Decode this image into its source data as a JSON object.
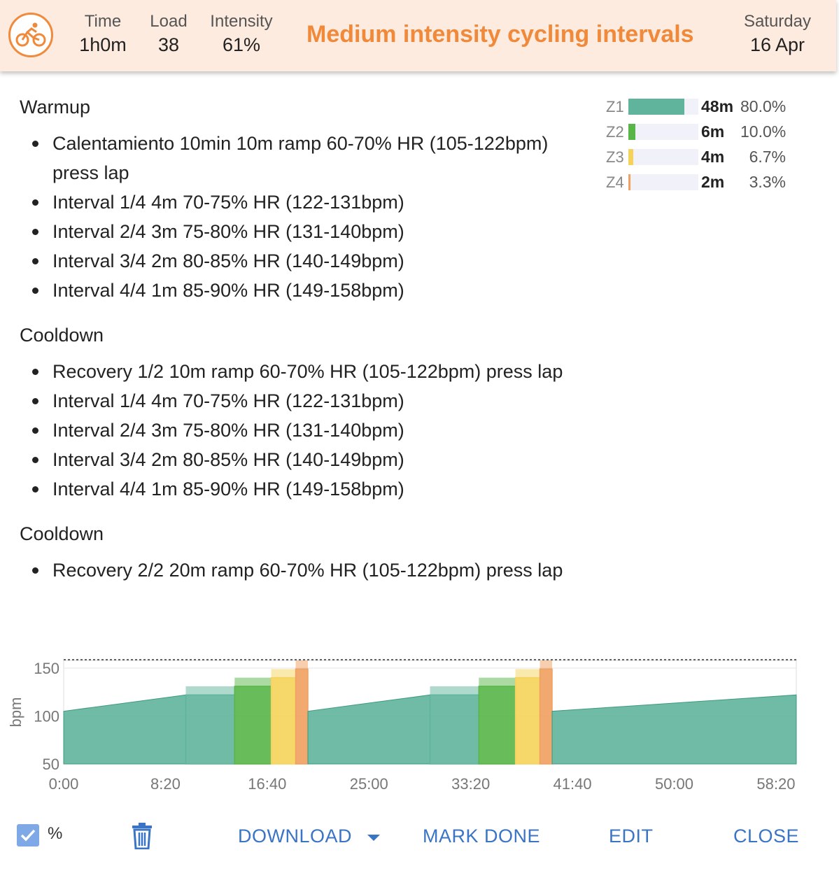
{
  "header": {
    "icon": "bike-icon",
    "accent": "#f0893a",
    "stats": [
      {
        "label": "Time",
        "value": "1h0m"
      },
      {
        "label": "Load",
        "value": "38"
      },
      {
        "label": "Intensity",
        "value": "61%"
      }
    ],
    "title": "Medium intensity cycling intervals",
    "day": "Saturday",
    "date": "16 Apr"
  },
  "sections": [
    {
      "title": "Warmup",
      "items": [
        "Calentamiento 10min 10m ramp 60-70% HR (105-122bpm) press lap",
        "Interval 1/4 4m 70-75% HR (122-131bpm)",
        "Interval 2/4 3m 75-80% HR (131-140bpm)",
        "Interval 3/4 2m 80-85% HR (140-149bpm)",
        "Interval 4/4 1m 85-90% HR (149-158bpm)"
      ]
    },
    {
      "title": "Cooldown",
      "items": [
        "Recovery 1/2 10m ramp 60-70% HR (105-122bpm) press lap",
        "Interval 1/4 4m 70-75% HR (122-131bpm)",
        "Interval 2/4 3m 75-80% HR (131-140bpm)",
        "Interval 3/4 2m 80-85% HR (140-149bpm)",
        "Interval 4/4 1m 85-90% HR (149-158bpm)"
      ]
    },
    {
      "title": "Cooldown",
      "items": [
        "Recovery 2/2 20m ramp 60-70% HR (105-122bpm) press lap"
      ]
    }
  ],
  "zones": [
    {
      "label": "Z1",
      "time": "48m",
      "pct": "80.0%",
      "fraction": 0.8,
      "color": "#5fb49b"
    },
    {
      "label": "Z2",
      "time": "6m",
      "pct": "10.0%",
      "fraction": 0.1,
      "color": "#58b547"
    },
    {
      "label": "Z3",
      "time": "4m",
      "pct": "6.7%",
      "fraction": 0.067,
      "color": "#f5d35a"
    },
    {
      "label": "Z4",
      "time": "2m",
      "pct": "3.3%",
      "fraction": 0.033,
      "color": "#f0a060"
    }
  ],
  "chart_data": {
    "type": "area",
    "ylabel": "bpm",
    "xlabel": "",
    "y_ticks": [
      "150",
      "100",
      "50"
    ],
    "x_ticks": [
      "0:00",
      "8:20",
      "16:40",
      "25:00",
      "33:20",
      "41:40",
      "50:00",
      "58:20"
    ],
    "ylim": [
      50,
      158
    ],
    "xlim_minutes": [
      0,
      60
    ],
    "max_hr_line_bpm": 158,
    "segments": [
      {
        "start_min": 0,
        "end_min": 10,
        "kind": "ramp",
        "low_bpm": 105,
        "high_bpm": 122,
        "zone": "Z1"
      },
      {
        "start_min": 10,
        "end_min": 14,
        "kind": "range",
        "low_bpm": 122,
        "high_bpm": 131,
        "zone": "Z1"
      },
      {
        "start_min": 14,
        "end_min": 17,
        "kind": "range",
        "low_bpm": 131,
        "high_bpm": 140,
        "zone": "Z2"
      },
      {
        "start_min": 17,
        "end_min": 19,
        "kind": "range",
        "low_bpm": 140,
        "high_bpm": 149,
        "zone": "Z3"
      },
      {
        "start_min": 19,
        "end_min": 20,
        "kind": "range",
        "low_bpm": 149,
        "high_bpm": 158,
        "zone": "Z4"
      },
      {
        "start_min": 20,
        "end_min": 30,
        "kind": "ramp",
        "low_bpm": 105,
        "high_bpm": 122,
        "zone": "Z1"
      },
      {
        "start_min": 30,
        "end_min": 34,
        "kind": "range",
        "low_bpm": 122,
        "high_bpm": 131,
        "zone": "Z1"
      },
      {
        "start_min": 34,
        "end_min": 37,
        "kind": "range",
        "low_bpm": 131,
        "high_bpm": 140,
        "zone": "Z2"
      },
      {
        "start_min": 37,
        "end_min": 39,
        "kind": "range",
        "low_bpm": 140,
        "high_bpm": 149,
        "zone": "Z3"
      },
      {
        "start_min": 39,
        "end_min": 40,
        "kind": "range",
        "low_bpm": 149,
        "high_bpm": 158,
        "zone": "Z4"
      },
      {
        "start_min": 40,
        "end_min": 60,
        "kind": "ramp",
        "low_bpm": 105,
        "high_bpm": 122,
        "zone": "Z1"
      }
    ]
  },
  "footer": {
    "percent_checked": true,
    "percent_label": "%",
    "download": "DOWNLOAD",
    "mark_done": "MARK DONE",
    "edit": "EDIT",
    "close": "CLOSE",
    "link_color": "#3a74c5"
  }
}
